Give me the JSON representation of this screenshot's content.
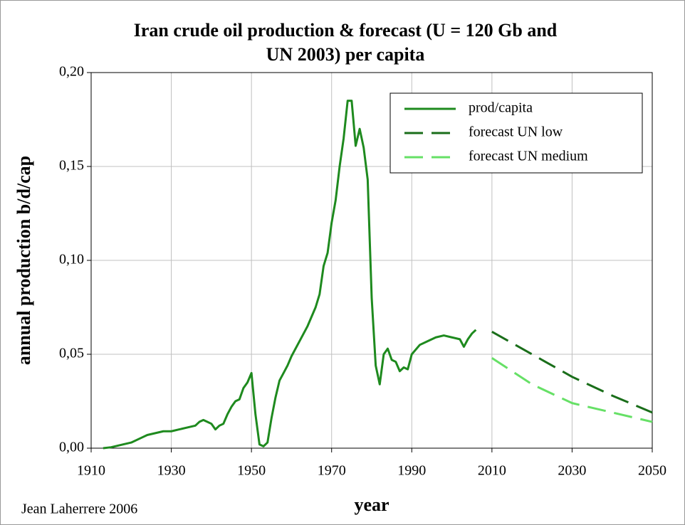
{
  "chart_data": {
    "type": "line",
    "title": [
      "Iran crude oil production & forecast (U = 120 Gb and",
      "UN 2003) per capita"
    ],
    "xlabel": "year",
    "ylabel": "annual production b/d/cap",
    "annotation": "Jean Laherrere 2006",
    "xlim": [
      1910,
      2050
    ],
    "xticks": [
      1910,
      1930,
      1950,
      1970,
      1990,
      2010,
      2030,
      2050
    ],
    "ylim": [
      0,
      0.2
    ],
    "yticks": [
      {
        "value": 0,
        "label": "0,00"
      },
      {
        "value": 0.05,
        "label": "0,05"
      },
      {
        "value": 0.1,
        "label": "0,10"
      },
      {
        "value": 0.15,
        "label": "0,15"
      },
      {
        "value": 0.2,
        "label": "0,20"
      }
    ],
    "grid": true,
    "legend": "upper right",
    "series": [
      {
        "name": "prod/capita",
        "color": "#1e8a1e",
        "dash": false,
        "x": [
          1913,
          1915,
          1918,
          1920,
          1922,
          1924,
          1926,
          1928,
          1930,
          1932,
          1934,
          1936,
          1937,
          1938,
          1939,
          1940,
          1941,
          1942,
          1943,
          1944,
          1945,
          1946,
          1947,
          1948,
          1949,
          1950,
          1951,
          1952,
          1953,
          1954,
          1955,
          1956,
          1957,
          1958,
          1959,
          1960,
          1962,
          1964,
          1966,
          1967,
          1968,
          1969,
          1970,
          1971,
          1972,
          1973,
          1974,
          1975,
          1976,
          1977,
          1978,
          1979,
          1980,
          1981,
          1982,
          1983,
          1984,
          1985,
          1986,
          1987,
          1988,
          1989,
          1990,
          1992,
          1994,
          1996,
          1998,
          2000,
          2002,
          2003,
          2004,
          2005,
          2006
        ],
        "values": [
          0,
          0.0005,
          0.002,
          0.003,
          0.005,
          0.007,
          0.008,
          0.009,
          0.009,
          0.01,
          0.011,
          0.012,
          0.014,
          0.015,
          0.014,
          0.013,
          0.01,
          0.012,
          0.013,
          0.018,
          0.022,
          0.025,
          0.026,
          0.032,
          0.035,
          0.04,
          0.018,
          0.002,
          0.001,
          0.003,
          0.016,
          0.027,
          0.036,
          0.04,
          0.044,
          0.049,
          0.057,
          0.065,
          0.075,
          0.082,
          0.097,
          0.104,
          0.12,
          0.132,
          0.15,
          0.165,
          0.185,
          0.185,
          0.161,
          0.17,
          0.16,
          0.143,
          0.08,
          0.044,
          0.034,
          0.05,
          0.053,
          0.047,
          0.046,
          0.041,
          0.043,
          0.042,
          0.05,
          0.055,
          0.057,
          0.059,
          0.06,
          0.059,
          0.058,
          0.054,
          0.058,
          0.061,
          0.063
        ]
      },
      {
        "name": "forecast UN low",
        "color": "#1a6e1a",
        "dash": true,
        "x": [
          2010,
          2020,
          2030,
          2040,
          2050
        ],
        "values": [
          0.062,
          0.05,
          0.038,
          0.028,
          0.019
        ]
      },
      {
        "name": "forecast UN medium",
        "color": "#66e066",
        "dash": true,
        "x": [
          2010,
          2020,
          2030,
          2040,
          2050
        ],
        "values": [
          0.048,
          0.034,
          0.024,
          0.019,
          0.014
        ]
      }
    ]
  }
}
